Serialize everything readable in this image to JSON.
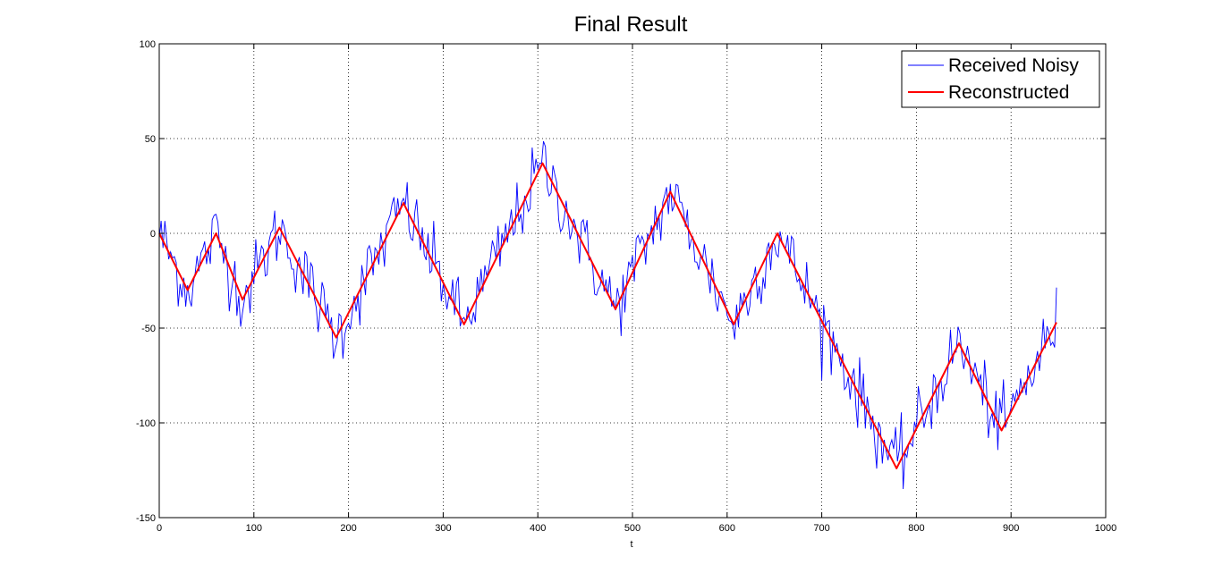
{
  "chart_data": {
    "type": "line",
    "title": "Final Result",
    "xlabel": "t",
    "ylabel": "",
    "xlim": [
      0,
      1000
    ],
    "ylim": [
      -150,
      100
    ],
    "xticks": [
      0,
      100,
      200,
      300,
      400,
      500,
      600,
      700,
      800,
      900,
      1000
    ],
    "yticks": [
      -150,
      -100,
      -50,
      0,
      50,
      100
    ],
    "grid": true,
    "legend_position": "top-right",
    "series": [
      {
        "name": "Received Noisy",
        "color": "#0000ff",
        "style": "noisy",
        "amplitude": 9,
        "x_step": 2,
        "x": [
          0,
          30,
          60,
          88,
          127,
          187,
          258,
          322,
          405,
          482,
          540,
          607,
          653,
          779,
          845,
          890,
          948
        ],
        "y": [
          0,
          -30,
          0,
          -35,
          3,
          -55,
          16,
          -48,
          37,
          -40,
          22,
          -48,
          0,
          -124,
          -58,
          -104,
          -47
        ]
      },
      {
        "name": "Reconstructed",
        "color": "#ff0000",
        "style": "line",
        "x": [
          0,
          30,
          60,
          88,
          127,
          187,
          258,
          322,
          405,
          482,
          540,
          607,
          653,
          779,
          845,
          890,
          948
        ],
        "y": [
          0,
          -30,
          0,
          -35,
          3,
          -55,
          16,
          -48,
          37,
          -40,
          22,
          -48,
          0,
          -124,
          -58,
          -104,
          -47
        ]
      }
    ]
  }
}
